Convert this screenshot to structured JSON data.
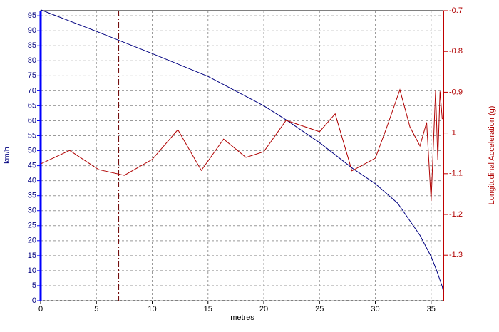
{
  "chart_data": {
    "type": "line",
    "x_label": "metres",
    "y_label": "km/h",
    "y2_label": "Longitudinal Acceleration (g)",
    "xlim": [
      0,
      36.1
    ],
    "xticks": [
      0,
      5,
      10,
      15,
      20,
      25,
      30,
      35
    ],
    "ylim": [
      0,
      96.7
    ],
    "yticks": [
      0,
      5,
      10,
      15,
      20,
      25,
      30,
      35,
      40,
      45,
      50,
      55,
      60,
      65,
      70,
      75,
      80,
      85,
      90,
      95
    ],
    "y2lim": [
      -1.4115,
      -0.7
    ],
    "y2ticks": [
      -1.3,
      -1.2,
      -1.1,
      -1,
      -0.9,
      -0.8,
      -0.7
    ],
    "grid": true,
    "y_axis_color": "#0000ff",
    "y2_axis_color": "#c00000",
    "cursor_x": 7,
    "cursor_color": "#6b0000",
    "series": [
      {
        "color": "#000080",
        "axis": "y",
        "x": [
          0,
          5,
          10,
          15,
          20,
          22,
          25,
          28,
          30,
          32,
          34,
          35,
          35.5,
          36,
          36.1
        ],
        "values": [
          97,
          89.8,
          82.4,
          74.8,
          65,
          60.3,
          52.7,
          44,
          39,
          32.5,
          21.8,
          14.7,
          10,
          4.7,
          3
        ]
      },
      {
        "color": "#b00000",
        "axis": "y2",
        "x": [
          0,
          2.6,
          5.2,
          7.5,
          10,
          12.3,
          14.4,
          16.4,
          18.4,
          20,
          22,
          25,
          26.4,
          27.9,
          30,
          31,
          32.2,
          33.1,
          34,
          34.6,
          35,
          35.4,
          35.6,
          35.8,
          36
        ],
        "values": [
          -1.076,
          -1.043,
          -1.09,
          -1.104,
          -1.065,
          -0.992,
          -1.092,
          -1.015,
          -1.06,
          -1.046,
          -0.969,
          -0.997,
          -0.953,
          -1.093,
          -1.062,
          -0.988,
          -0.894,
          -0.985,
          -1.032,
          -0.974,
          -1.167,
          -0.896,
          -1.067,
          -0.898,
          -0.966
        ]
      }
    ]
  }
}
